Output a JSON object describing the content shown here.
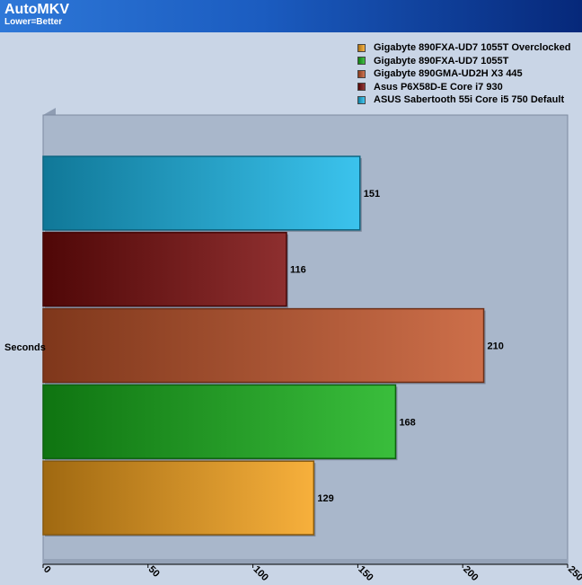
{
  "header": {
    "title": "AutoMKV",
    "subtitle": "Lower=Better"
  },
  "chart_data": {
    "type": "bar",
    "orientation": "horizontal",
    "title": "AutoMKV",
    "subtitle": "Lower=Better",
    "categories": [
      "Seconds"
    ],
    "series": [
      {
        "name": "Gigabyte 890FXA-UD7 1055T Overclocked",
        "values": [
          129
        ],
        "color": "#f6a21a"
      },
      {
        "name": "Gigabyte 890FXA-UD7 1055T",
        "values": [
          168
        ],
        "color": "#17b21a"
      },
      {
        "name": "Gigabyte 890GMA-UD2H X3 445",
        "values": [
          210
        ],
        "color": "#c4552a"
      },
      {
        "name": "Asus P6X58D-E Core i7 930",
        "values": [
          116
        ],
        "color": "#7a0a0a"
      },
      {
        "name": "ASUS Sabertooth 55i Core i5 750 Default",
        "values": [
          151
        ],
        "color": "#18b8ea"
      }
    ],
    "xlim": [
      0,
      250
    ],
    "xticks": [
      0,
      50,
      100,
      150,
      200,
      250
    ],
    "grid": false,
    "legend_position": "top-right"
  },
  "colors": {
    "header_start": "#2e78d8",
    "header_end": "#06287a",
    "background": "#c9d5e6",
    "plot_area": "#a9b7cb"
  }
}
